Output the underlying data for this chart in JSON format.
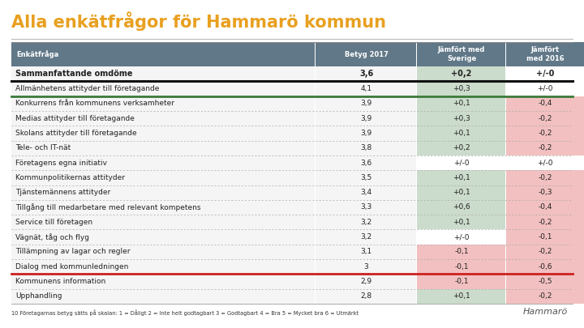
{
  "title": "Alla enkätfrågor för Hammarö kommun",
  "title_color": "#E8A020",
  "title_fontsize": 15,
  "header": [
    "Enkätfråga",
    "Betyg 2017",
    "Jämfört med\nSverige",
    "Jämfört\nmed 2016"
  ],
  "header_bg": "#607888",
  "header_text_color": "#ffffff",
  "rows": [
    [
      "Sammanfattande omdöme",
      "3,6",
      "+0,2",
      "+/-0"
    ],
    [
      "Allmänhetens attityder till företagande",
      "4,1",
      "+0,3",
      "+/-0"
    ],
    [
      "Konkurrens från kommunens verksamheter",
      "3,9",
      "+0,1",
      "-0,4"
    ],
    [
      "Medias attityder till företagande",
      "3,9",
      "+0,3",
      "-0,2"
    ],
    [
      "Skolans attityder till företagande",
      "3,9",
      "+0,1",
      "-0,2"
    ],
    [
      "Tele- och IT-nät",
      "3,8",
      "+0,2",
      "-0,2"
    ],
    [
      "Företagens egna initiativ",
      "3,6",
      "+/-0",
      "+/-0"
    ],
    [
      "Kommunpolitikernas attityder",
      "3,5",
      "+0,1",
      "-0,2"
    ],
    [
      "Tjänstemännens attityder",
      "3,4",
      "+0,1",
      "-0,3"
    ],
    [
      "Tillgång till medarbetare med relevant kompetens",
      "3,3",
      "+0,6",
      "-0,4"
    ],
    [
      "Service till företagen",
      "3,2",
      "+0,1",
      "-0,2"
    ],
    [
      "Vägnät, tåg och flyg",
      "3,2",
      "+/-0",
      "-0,1"
    ],
    [
      "Tillämpning av lagar och regler",
      "3,1",
      "-0,1",
      "-0,2"
    ],
    [
      "Dialog med kommunledningen",
      "3",
      "-0,1",
      "-0,6"
    ],
    [
      "Kommunens information",
      "2,9",
      "-0,1",
      "-0,5"
    ],
    [
      "Upphandling",
      "2,8",
      "+0,1",
      "-0,2"
    ]
  ],
  "col3_colors": [
    "#ccdccc",
    "#ccdccc",
    "#ccdccc",
    "#ccdccc",
    "#ccdccc",
    "#ccdccc",
    "#ffffff",
    "#ccdccc",
    "#ccdccc",
    "#ccdccc",
    "#ccdccc",
    "#ffffff",
    "#f2c0c0",
    "#f2c0c0",
    "#f2c0c0",
    "#ccdccc"
  ],
  "col4_colors": [
    "#ffffff",
    "#ffffff",
    "#f2c0c0",
    "#f2c0c0",
    "#f2c0c0",
    "#f2c0c0",
    "#ffffff",
    "#f2c0c0",
    "#f2c0c0",
    "#f2c0c0",
    "#f2c0c0",
    "#f2c0c0",
    "#f2c0c0",
    "#f2c0c0",
    "#f2c0c0",
    "#f2c0c0"
  ],
  "footnote": "10 Företagarnas betyg sätts på skalan: 1 = Dåligt 2 = Inte helt godtagbart 3 = Godtagbart 4 = Bra 5 = Mycket bra 6 = Utmärkt",
  "watermark": "Hammarö",
  "bg_color": "#ffffff"
}
